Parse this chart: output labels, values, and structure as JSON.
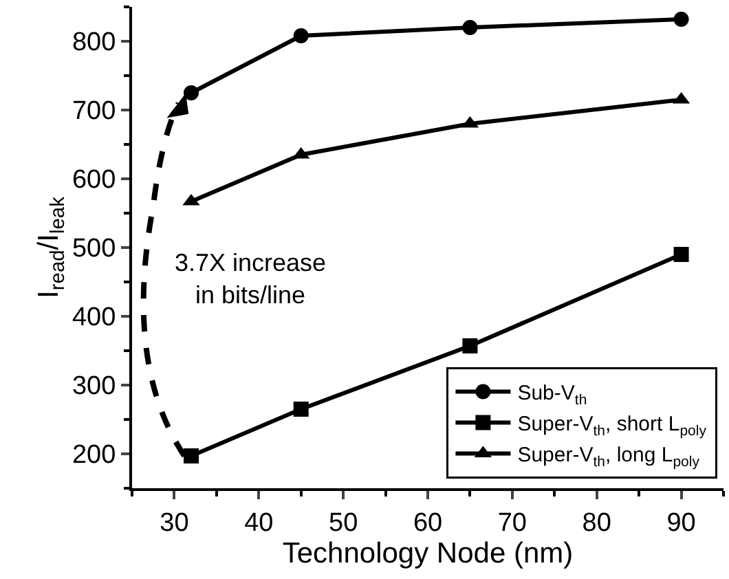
{
  "chart_data": {
    "type": "line",
    "xlabel": "Technology Node (nm)",
    "ylabel": "I$_{read}$/I$_{leak}$",
    "x": [
      32,
      45,
      65,
      90
    ],
    "series": [
      {
        "name": "Sub-V$_{th}$",
        "color": "#000000",
        "marker": "circle",
        "values": [
          725,
          808,
          820,
          832
        ]
      },
      {
        "name": "Super-V$_{th}$, short L$_{poly}$",
        "color": "#000000",
        "marker": "square",
        "values": [
          197,
          265,
          357,
          490
        ]
      },
      {
        "name": "Super-V$_{th}$, long L$_{poly}$",
        "color": "#000000",
        "marker": "triangle",
        "values": [
          567,
          635,
          680,
          715
        ]
      }
    ],
    "xlim": [
      25,
      95
    ],
    "xticks": [
      30,
      40,
      50,
      60,
      70,
      80,
      90
    ],
    "ylim": [
      150,
      850
    ],
    "yticks": [
      200,
      300,
      400,
      500,
      600,
      700,
      800
    ],
    "annotations": [
      "3.7X increase\nin bits/line"
    ],
    "legend": "bottom right",
    "line_style": "solid"
  }
}
